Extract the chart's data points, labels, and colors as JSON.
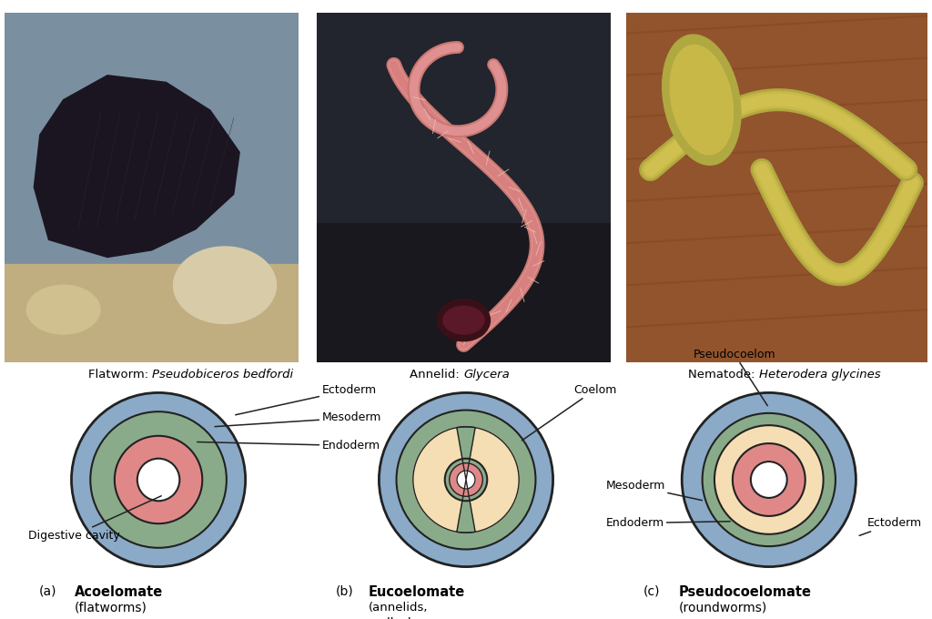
{
  "bg_color": "#ffffff",
  "ectoderm_color": "#8aaac8",
  "mesoderm_color": "#8aab8a",
  "endoderm_color": "#e08888",
  "coelom_color": "#f5deb3",
  "white": "#ffffff",
  "line_color": "#222222",
  "photo_captions": [
    "Flatworm: ",
    "Annelid: ",
    "Nematode: "
  ],
  "photo_captions_italic": [
    "Pseudobiceros bedfordi",
    "Glycera",
    "Heterodera glycines"
  ],
  "flatworm_colors": {
    "bg": "#8899aa",
    "sandy": "#c8b880",
    "body": "#111118"
  },
  "annelid_colors": {
    "bg": "#1a1a25"
  },
  "nematode_colors": {
    "bg": "#8b5530"
  }
}
